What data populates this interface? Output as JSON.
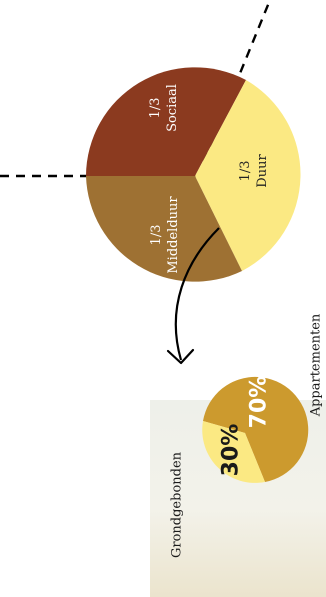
{
  "big_pie": {
    "segments": [
      {
        "fraction": "1/3",
        "label": "Sociaal",
        "color": "#8b3a1f"
      },
      {
        "fraction": "1/3",
        "label": "Duur",
        "color": "#fbe983"
      },
      {
        "fraction": "1/3",
        "label": "Middelduur",
        "color": "#9e7133"
      }
    ]
  },
  "small_pie": {
    "segments": [
      {
        "percent": "70%",
        "label": "Appartementen",
        "color": "#cc9a2e"
      },
      {
        "percent": "30%",
        "label": "Grondgebonden",
        "color": "#fbe983"
      }
    ]
  }
}
